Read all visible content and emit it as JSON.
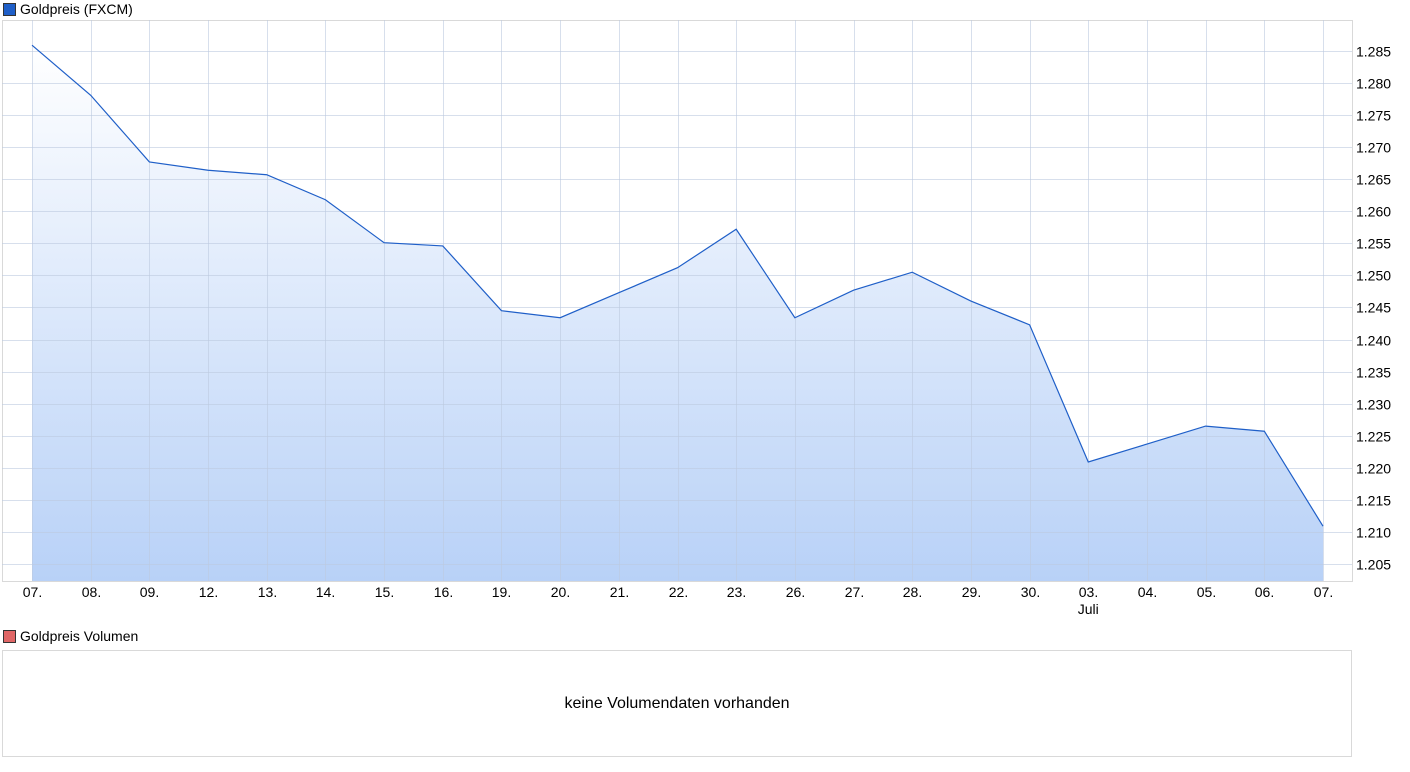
{
  "chart_data": {
    "type": "area",
    "title": "Goldpreis (FXCM)",
    "series": [
      {
        "name": "Goldpreis (FXCM)",
        "color": "#1f5fc8",
        "values": [
          1.2859,
          1.2781,
          1.2677,
          1.2664,
          1.2657,
          1.2618,
          1.2551,
          1.2546,
          1.2445,
          1.2434,
          1.2473,
          1.2512,
          1.2572,
          1.2434,
          1.2477,
          1.2505,
          1.246,
          1.2423,
          1.2209,
          1.2237,
          1.2265,
          1.2257,
          1.2109
        ]
      }
    ],
    "categories": [
      "07.",
      "08.",
      "09.",
      "12.",
      "13.",
      "14.",
      "15.",
      "16.",
      "19.",
      "20.",
      "21.",
      "22.",
      "23.",
      "26.",
      "27.",
      "28.",
      "29.",
      "30.",
      "03.",
      "04.",
      "05.",
      "06.",
      "07."
    ],
    "month_labels": [
      {
        "index": 18,
        "label": "Juli"
      }
    ],
    "y_ticks": [
      "1.205",
      "1.210",
      "1.215",
      "1.220",
      "1.225",
      "1.230",
      "1.235",
      "1.240",
      "1.245",
      "1.250",
      "1.255",
      "1.260",
      "1.265",
      "1.270",
      "1.275",
      "1.280",
      "1.285"
    ],
    "ylim": [
      1.2025,
      1.2895
    ],
    "grid": true,
    "y_axis_position": "right",
    "fill_gradient": [
      "#ffffff",
      "#b8d1f7"
    ]
  },
  "volume": {
    "title": "Goldpreis Volumen",
    "color": "#e06666",
    "message": "keine Volumendaten vorhanden"
  }
}
